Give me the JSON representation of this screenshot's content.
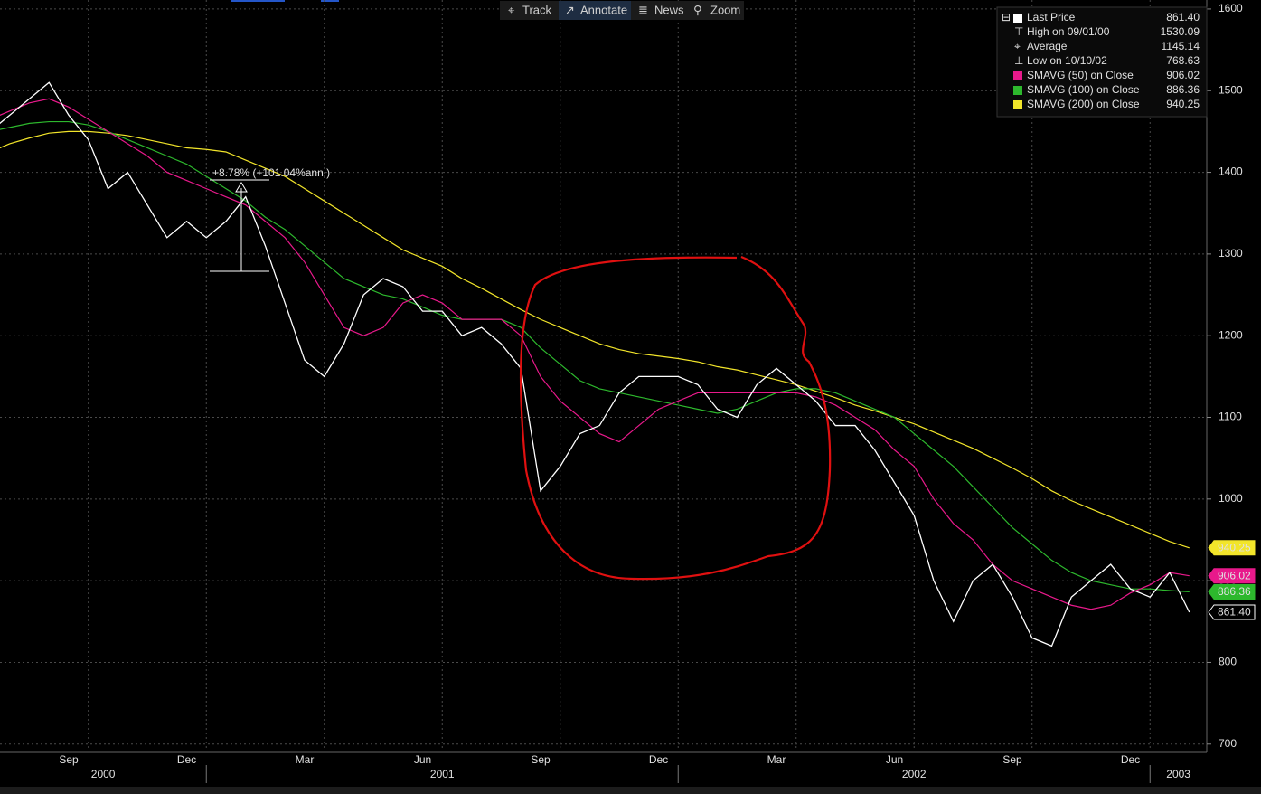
{
  "toolbar": {
    "buttons": [
      "Track",
      "Annotate",
      "News",
      "Zoom"
    ]
  },
  "chart_data": {
    "type": "line",
    "categories": [
      null,
      null,
      null,
      null,
      "Sep",
      null,
      null,
      null,
      null,
      null,
      "Dec",
      null,
      null,
      null,
      null,
      null,
      "Mar",
      null,
      null,
      null,
      null,
      null,
      "Jun",
      null,
      null,
      null,
      null,
      null,
      "Sep",
      null,
      null,
      null,
      null,
      null,
      "Dec",
      null,
      null,
      null,
      null,
      null,
      "Mar",
      null,
      null,
      null,
      null,
      null,
      "Jun",
      null,
      null,
      null,
      null,
      null,
      "Sep",
      null,
      null,
      null,
      null,
      null,
      "Dec",
      null,
      null,
      null
    ],
    "category_years": [
      "2000",
      null,
      null,
      null,
      null,
      null,
      null,
      null,
      null,
      null,
      null,
      "2001",
      null,
      null,
      null,
      null,
      null,
      null,
      null,
      null,
      null,
      null,
      null,
      null,
      null,
      null,
      null,
      null,
      null,
      null,
      null,
      null,
      null,
      null,
      null,
      "2002",
      null,
      null,
      null,
      null,
      null,
      null,
      null,
      null,
      null,
      null,
      null,
      null,
      null,
      null,
      null,
      null,
      null,
      null,
      null,
      null,
      null,
      null,
      null,
      "2003",
      null,
      null
    ],
    "ylim": [
      692,
      1611
    ],
    "yticks": [
      700,
      800,
      900,
      1000,
      1100,
      1200,
      1300,
      1400,
      1500,
      1600
    ],
    "grid": true,
    "series": [
      {
        "name": "Last Price",
        "color": "#ffffff",
        "last_value_label": "861.40",
        "values": [
          1450,
          1470,
          1490,
          1510,
          1470,
          1440,
          1380,
          1400,
          1360,
          1320,
          1340,
          1320,
          1340,
          1370,
          1310,
          1240,
          1170,
          1150,
          1190,
          1250,
          1270,
          1260,
          1230,
          1230,
          1200,
          1210,
          1190,
          1160,
          1010,
          1040,
          1080,
          1090,
          1130,
          1150,
          1150,
          1150,
          1140,
          1110,
          1100,
          1140,
          1160,
          1140,
          1120,
          1090,
          1090,
          1060,
          1020,
          980,
          900,
          850,
          900,
          920,
          880,
          830,
          820,
          880,
          900,
          920,
          890,
          880,
          910,
          861.4
        ]
      },
      {
        "name": "SMAVG (50)  on Close",
        "color": "#e8198b",
        "last_value_label": "906.02",
        "values": [
          1465,
          1475,
          1485,
          1490,
          1480,
          1465,
          1450,
          1435,
          1420,
          1400,
          1390,
          1380,
          1370,
          1360,
          1340,
          1320,
          1290,
          1250,
          1210,
          1200,
          1210,
          1240,
          1250,
          1240,
          1220,
          1220,
          1220,
          1200,
          1150,
          1120,
          1100,
          1080,
          1070,
          1090,
          1110,
          1120,
          1130,
          1130,
          1130,
          1130,
          1130,
          1130,
          1125,
          1115,
          1100,
          1085,
          1060,
          1040,
          1000,
          970,
          950,
          920,
          900,
          890,
          880,
          870,
          865,
          870,
          885,
          895,
          910,
          906.02
        ]
      },
      {
        "name": "SMAVG (100)  on Close",
        "color": "#2db82d",
        "last_value_label": "886.36",
        "values": [
          1450,
          1455,
          1460,
          1462,
          1462,
          1458,
          1450,
          1440,
          1430,
          1420,
          1410,
          1395,
          1380,
          1365,
          1345,
          1330,
          1310,
          1290,
          1270,
          1260,
          1250,
          1245,
          1235,
          1225,
          1220,
          1220,
          1220,
          1210,
          1185,
          1165,
          1145,
          1135,
          1130,
          1125,
          1120,
          1115,
          1110,
          1105,
          1110,
          1120,
          1130,
          1135,
          1135,
          1130,
          1120,
          1110,
          1100,
          1080,
          1060,
          1040,
          1015,
          990,
          965,
          945,
          925,
          910,
          900,
          895,
          890,
          890,
          888,
          886.36
        ]
      },
      {
        "name": "SMAVG (200)  on Close",
        "color": "#f2e52a",
        "last_value_label": "940.25",
        "values": [
          1425,
          1435,
          1442,
          1448,
          1450,
          1450,
          1448,
          1445,
          1440,
          1435,
          1430,
          1428,
          1425,
          1415,
          1405,
          1395,
          1380,
          1365,
          1350,
          1335,
          1320,
          1305,
          1295,
          1285,
          1270,
          1258,
          1245,
          1232,
          1220,
          1210,
          1200,
          1190,
          1183,
          1178,
          1175,
          1172,
          1168,
          1162,
          1158,
          1152,
          1146,
          1140,
          1132,
          1124,
          1115,
          1108,
          1100,
          1092,
          1082,
          1072,
          1062,
          1050,
          1038,
          1025,
          1010,
          998,
          988,
          978,
          968,
          958,
          948,
          940.25
        ]
      }
    ],
    "stats": [
      {
        "label": "High on 09/01/00",
        "value": "1530.09"
      },
      {
        "label": "Average",
        "value": "1145.14"
      },
      {
        "label": "Low on 10/10/02",
        "value": "768.63"
      }
    ],
    "annotation": "+8.78% (+101.04%ann.)"
  }
}
